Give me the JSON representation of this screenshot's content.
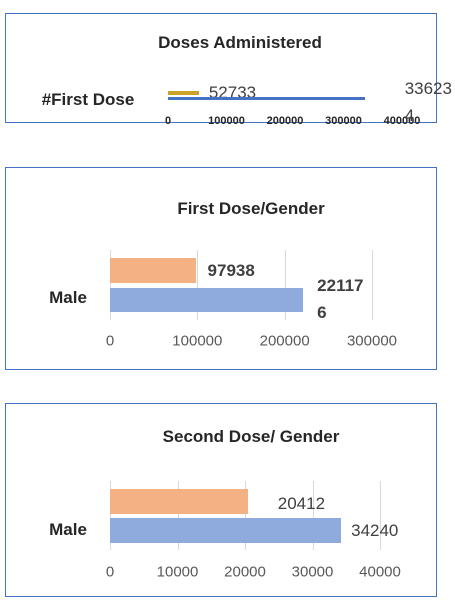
{
  "chart_data": [
    {
      "type": "bar",
      "orientation": "horizontal",
      "title": "Doses Administered",
      "categories": [
        "#First Dose"
      ],
      "series": [
        {
          "color": "#c9a227",
          "values": [
            52733
          ]
        },
        {
          "color": "#4472c4",
          "values": [
            336234
          ]
        }
      ],
      "xlim": [
        0,
        400000
      ],
      "xticks": [
        0,
        100000,
        200000,
        300000,
        400000
      ],
      "grid": false
    },
    {
      "type": "bar",
      "orientation": "horizontal",
      "title": "First Dose/Gender",
      "categories": [
        "Male"
      ],
      "series": [
        {
          "color": "#f4b183",
          "values": [
            97938
          ]
        },
        {
          "color": "#8faadc",
          "values": [
            221176
          ]
        }
      ],
      "xlim": [
        0,
        300000
      ],
      "xticks": [
        0,
        100000,
        200000,
        300000
      ],
      "grid": true
    },
    {
      "type": "bar",
      "orientation": "horizontal",
      "title": "Second Dose/ Gender",
      "categories": [
        "Male"
      ],
      "series": [
        {
          "color": "#f4b183",
          "values": [
            20412
          ]
        },
        {
          "color": "#8faadc",
          "values": [
            34240
          ]
        }
      ],
      "xlim": [
        0,
        40000
      ],
      "xticks": [
        0,
        10000,
        20000,
        30000,
        40000
      ],
      "grid": true
    }
  ]
}
